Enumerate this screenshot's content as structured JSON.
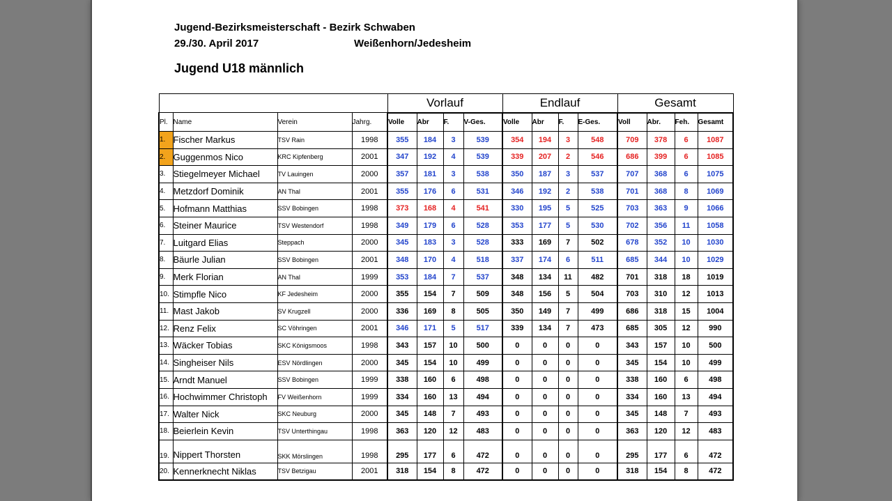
{
  "document": {
    "title": "Jugend-Bezirksmeisterschaft - Bezirk Schwaben",
    "date": "29./30. April 2017",
    "location": "Weißenhorn/Jedesheim",
    "category": "Jugend U18 männlich"
  },
  "table": {
    "group_headers": [
      "Vorlauf",
      "Endlauf",
      "Gesamt"
    ],
    "columns": [
      "Pl.",
      "Name",
      "Verein",
      "Jahrg.",
      "Volle",
      "Abr",
      "F.",
      "V-Ges.",
      "Volle",
      "Abr",
      "F.",
      "E-Ges.",
      "Voll",
      "Abr.",
      "Feh.",
      "Gesamt"
    ],
    "colors": {
      "blue": "#2244cc",
      "red": "#e52222",
      "highlight": "#f2a31c"
    },
    "rows": [
      {
        "pl": "1.",
        "name": "Fischer Markus",
        "club": "TSV Rain",
        "year": "1998",
        "vorlauf": [
          355,
          184,
          3,
          539
        ],
        "endlauf": [
          354,
          194,
          3,
          548
        ],
        "gesamt": [
          709,
          378,
          6,
          1087
        ],
        "style": {
          "vorlauf": "blue",
          "endlauf": "red",
          "gesamt": "red"
        },
        "highlight": true
      },
      {
        "pl": "2.",
        "name": "Guggenmos Nico",
        "club": "KRC Kipfenberg",
        "year": "2001",
        "vorlauf": [
          347,
          192,
          4,
          539
        ],
        "endlauf": [
          339,
          207,
          2,
          546
        ],
        "gesamt": [
          686,
          399,
          6,
          1085
        ],
        "style": {
          "vorlauf": "blue",
          "endlauf": "red",
          "gesamt": "red"
        },
        "highlight": true
      },
      {
        "pl": "3.",
        "name": "Stiegelmeyer Michael",
        "club": "TV Lauingen",
        "year": "2000",
        "vorlauf": [
          357,
          181,
          3,
          538
        ],
        "endlauf": [
          350,
          187,
          3,
          537
        ],
        "gesamt": [
          707,
          368,
          6,
          1075
        ],
        "style": {
          "vorlauf": "blue",
          "endlauf": "blue",
          "gesamt": "blue"
        },
        "highlight": false
      },
      {
        "pl": "4.",
        "name": "Metzdorf Dominik",
        "club": "AN Thal",
        "year": "2001",
        "vorlauf": [
          355,
          176,
          6,
          531
        ],
        "endlauf": [
          346,
          192,
          2,
          538
        ],
        "gesamt": [
          701,
          368,
          8,
          1069
        ],
        "style": {
          "vorlauf": "blue",
          "endlauf": "blue",
          "gesamt": "blue"
        },
        "highlight": false
      },
      {
        "pl": "5.",
        "name": "Hofmann Matthias",
        "club": "SSV Bobingen",
        "year": "1998",
        "vorlauf": [
          373,
          168,
          4,
          541
        ],
        "endlauf": [
          330,
          195,
          5,
          525
        ],
        "gesamt": [
          703,
          363,
          9,
          1066
        ],
        "style": {
          "vorlauf": "red",
          "endlauf": "blue",
          "gesamt": "blue"
        },
        "highlight": false
      },
      {
        "pl": "6.",
        "name": "Steiner Maurice",
        "club": "TSV Westendorf",
        "year": "1998",
        "vorlauf": [
          349,
          179,
          6,
          528
        ],
        "endlauf": [
          353,
          177,
          5,
          530
        ],
        "gesamt": [
          702,
          356,
          11,
          1058
        ],
        "style": {
          "vorlauf": "blue",
          "endlauf": "blue",
          "gesamt": "blue"
        },
        "highlight": false
      },
      {
        "pl": "7.",
        "name": "Luitgard Elias",
        "club": "Steppach",
        "year": "2000",
        "vorlauf": [
          345,
          183,
          3,
          528
        ],
        "endlauf": [
          333,
          169,
          7,
          502
        ],
        "gesamt": [
          678,
          352,
          10,
          1030
        ],
        "style": {
          "vorlauf": "blue",
          "endlauf": "bold",
          "gesamt": "blue"
        },
        "highlight": false
      },
      {
        "pl": "8.",
        "name": "Bäurle Julian",
        "club": "SSV Bobingen",
        "year": "2001",
        "vorlauf": [
          348,
          170,
          4,
          518
        ],
        "endlauf": [
          337,
          174,
          6,
          511
        ],
        "gesamt": [
          685,
          344,
          10,
          1029
        ],
        "style": {
          "vorlauf": "blue",
          "endlauf": "blue",
          "gesamt": "blue"
        },
        "highlight": false
      },
      {
        "pl": "9.",
        "name": "Merk Florian",
        "club": "AN Thal",
        "year": "1999",
        "vorlauf": [
          353,
          184,
          7,
          537
        ],
        "endlauf": [
          348,
          134,
          11,
          482
        ],
        "gesamt": [
          701,
          318,
          18,
          1019
        ],
        "style": {
          "vorlauf": "blue",
          "endlauf": "bold",
          "gesamt": "bold"
        },
        "highlight": false
      },
      {
        "pl": "10.",
        "name": "Stimpfle Nico",
        "club": "KF Jedesheim",
        "year": "2000",
        "vorlauf": [
          355,
          154,
          7,
          509
        ],
        "endlauf": [
          348,
          156,
          5,
          504
        ],
        "gesamt": [
          703,
          310,
          12,
          1013
        ],
        "style": {
          "vorlauf": "bold",
          "endlauf": "bold",
          "gesamt": "bold"
        },
        "highlight": false
      },
      {
        "pl": "11.",
        "name": "Mast Jakob",
        "club": "SV Krugzell",
        "year": "2000",
        "vorlauf": [
          336,
          169,
          8,
          505
        ],
        "endlauf": [
          350,
          149,
          7,
          499
        ],
        "gesamt": [
          686,
          318,
          15,
          1004
        ],
        "style": {
          "vorlauf": "bold",
          "endlauf": "bold",
          "gesamt": "bold"
        },
        "highlight": false
      },
      {
        "pl": "12.",
        "name": "Renz Felix",
        "club": "SC Vöhringen",
        "year": "2001",
        "vorlauf": [
          346,
          171,
          5,
          517
        ],
        "endlauf": [
          339,
          134,
          7,
          473
        ],
        "gesamt": [
          685,
          305,
          12,
          990
        ],
        "style": {
          "vorlauf": "blue",
          "endlauf": "normal",
          "gesamt": "bold"
        },
        "highlight": false
      },
      {
        "pl": "13.",
        "name": "Wäcker Tobias",
        "club": "SKC Königsmoos",
        "year": "1998",
        "vorlauf": [
          343,
          157,
          10,
          500
        ],
        "endlauf": [
          0,
          0,
          0,
          0
        ],
        "gesamt": [
          343,
          157,
          10,
          500
        ],
        "style": {
          "vorlauf": "bold",
          "endlauf": "normal",
          "gesamt": "normal"
        },
        "highlight": false
      },
      {
        "pl": "14.",
        "name": "Singheiser Nils",
        "club": "ESV Nördlingen",
        "year": "2000",
        "vorlauf": [
          345,
          154,
          10,
          499
        ],
        "endlauf": [
          0,
          0,
          0,
          0
        ],
        "gesamt": [
          345,
          154,
          10,
          499
        ],
        "style": {
          "vorlauf": "bold",
          "endlauf": "normal",
          "gesamt": "normal"
        },
        "highlight": false
      },
      {
        "pl": "15.",
        "name": "Arndt Manuel",
        "club": "SSV Bobingen",
        "year": "1999",
        "vorlauf": [
          338,
          160,
          6,
          498
        ],
        "endlauf": [
          0,
          0,
          0,
          0
        ],
        "gesamt": [
          338,
          160,
          6,
          498
        ],
        "style": {
          "vorlauf": "bold",
          "endlauf": "normal",
          "gesamt": "normal"
        },
        "highlight": false
      },
      {
        "pl": "16.",
        "name": "Hochwimmer Christoph",
        "club": "FV Weißenhorn",
        "year": "1999",
        "vorlauf": [
          334,
          160,
          13,
          494
        ],
        "endlauf": [
          0,
          0,
          0,
          0
        ],
        "gesamt": [
          334,
          160,
          13,
          494
        ],
        "style": {
          "vorlauf": "bold",
          "endlauf": "normal",
          "gesamt": "normal"
        },
        "highlight": false
      },
      {
        "pl": "17.",
        "name": "Walter Nick",
        "club": "SKC Neuburg",
        "year": "2000",
        "vorlauf": [
          345,
          148,
          7,
          493
        ],
        "endlauf": [
          0,
          0,
          0,
          0
        ],
        "gesamt": [
          345,
          148,
          7,
          493
        ],
        "style": {
          "vorlauf": "bold",
          "endlauf": "normal",
          "gesamt": "normal"
        },
        "highlight": false
      },
      {
        "pl": "18.",
        "name": "Beierlein Kevin",
        "club": "TSV Unterthingau",
        "year": "1998",
        "vorlauf": [
          363,
          120,
          12,
          483
        ],
        "endlauf": [
          0,
          0,
          0,
          0
        ],
        "gesamt": [
          363,
          120,
          12,
          483
        ],
        "style": {
          "vorlauf": "bold",
          "endlauf": "normal",
          "gesamt": "normal"
        },
        "highlight": false
      },
      {
        "pl": "19.",
        "name": "Nippert Thorsten",
        "club": "SKK Mörslingen",
        "year": "1998",
        "vorlauf": [
          295,
          177,
          6,
          472
        ],
        "endlauf": [
          0,
          0,
          0,
          0
        ],
        "gesamt": [
          295,
          177,
          6,
          472
        ],
        "style": {
          "vorlauf": "normal",
          "endlauf": "normal",
          "gesamt": "normal"
        },
        "highlight": false,
        "gap_before": true
      },
      {
        "pl": "20.",
        "name": "Kennerknecht Niklas",
        "club": "TSV Betzigau",
        "year": "2001",
        "vorlauf": [
          318,
          154,
          8,
          472
        ],
        "endlauf": [
          0,
          0,
          0,
          0
        ],
        "gesamt": [
          318,
          154,
          8,
          472
        ],
        "style": {
          "vorlauf": "normal",
          "endlauf": "normal",
          "gesamt": "normal"
        },
        "highlight": false
      }
    ]
  }
}
